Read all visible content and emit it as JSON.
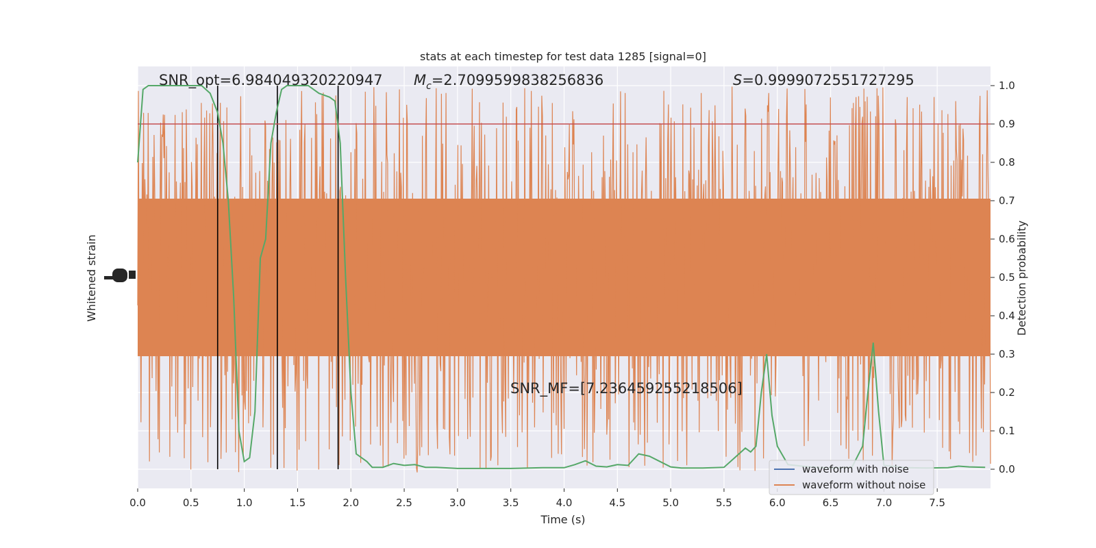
{
  "chart_data": {
    "type": "line",
    "title": "stats at each timestep for test data 1285 [signal=0]",
    "xlabel": "Time (s)",
    "ylabel_left": "Whitened strain",
    "ylabel_right": "Detection probability",
    "xlim": [
      0,
      8
    ],
    "ylim_right": [
      -0.05,
      1.05
    ],
    "x_ticks": [
      "0.0",
      "0.5",
      "1.0",
      "1.5",
      "2.0",
      "2.5",
      "3.0",
      "3.5",
      "4.0",
      "4.5",
      "5.0",
      "5.5",
      "6.0",
      "6.5",
      "7.0",
      "7.5"
    ],
    "y_ticks_right": [
      "0.0",
      "0.1",
      "0.2",
      "0.3",
      "0.4",
      "0.5",
      "0.6",
      "0.7",
      "0.8",
      "0.9",
      "1.0"
    ],
    "grid": true,
    "annotations": {
      "snr_opt": "SNR_opt=6.984049320220947",
      "mc_symbol": "M",
      "mc_sub": "c",
      "mc_value": "=2.7099599838256836",
      "s_symbol": "S",
      "s_value": "=0.9999072551727295",
      "snr_mf": "SNR_MF=[7.236459255218506]"
    },
    "threshold": {
      "y": 0.9,
      "color": "#c44e52"
    },
    "vertical_lines_x": [
      0.75,
      1.31,
      1.88
    ],
    "legend_position": "bottom-right",
    "series": [
      {
        "name": "waveform with noise",
        "color": "#4c72b0"
      },
      {
        "name": "waveform without noise",
        "color": "#dd8452"
      },
      {
        "color": "#55a868",
        "x": [
          0.0,
          0.05,
          0.1,
          0.2,
          0.3,
          0.4,
          0.5,
          0.6,
          0.68,
          0.75,
          0.8,
          0.85,
          0.9,
          0.95,
          1.0,
          1.05,
          1.1,
          1.15,
          1.2,
          1.25,
          1.3,
          1.35,
          1.4,
          1.5,
          1.6,
          1.7,
          1.8,
          1.85,
          1.9,
          1.95,
          2.0,
          2.05,
          2.1,
          2.15,
          2.2,
          2.3,
          2.4,
          2.5,
          2.6,
          2.7,
          2.8,
          3.0,
          3.5,
          3.8,
          4.0,
          4.1,
          4.2,
          4.3,
          4.4,
          4.5,
          4.6,
          4.7,
          4.8,
          4.9,
          5.0,
          5.1,
          5.3,
          5.5,
          5.6,
          5.7,
          5.75,
          5.8,
          5.85,
          5.9,
          5.95,
          6.0,
          6.1,
          6.3,
          6.5,
          6.7,
          6.8,
          6.85,
          6.9,
          6.95,
          7.0,
          7.2,
          7.4,
          7.6,
          7.7,
          7.8,
          7.95
        ],
        "y": [
          0.8,
          0.99,
          1.0,
          1.0,
          1.0,
          1.0,
          1.0,
          1.0,
          0.98,
          0.93,
          0.85,
          0.7,
          0.45,
          0.1,
          0.02,
          0.03,
          0.15,
          0.55,
          0.6,
          0.85,
          0.93,
          0.99,
          1.0,
          1.0,
          1.0,
          0.98,
          0.97,
          0.96,
          0.85,
          0.5,
          0.2,
          0.04,
          0.03,
          0.02,
          0.005,
          0.005,
          0.015,
          0.01,
          0.012,
          0.005,
          0.005,
          0.002,
          0.002,
          0.004,
          0.004,
          0.012,
          0.022,
          0.008,
          0.006,
          0.012,
          0.01,
          0.04,
          0.034,
          0.02,
          0.006,
          0.003,
          0.003,
          0.005,
          0.03,
          0.055,
          0.045,
          0.06,
          0.2,
          0.3,
          0.14,
          0.06,
          0.012,
          0.006,
          0.003,
          0.005,
          0.06,
          0.2,
          0.33,
          0.15,
          0.01,
          0.004,
          0.003,
          0.004,
          0.008,
          0.006,
          0.005
        ]
      }
    ]
  }
}
